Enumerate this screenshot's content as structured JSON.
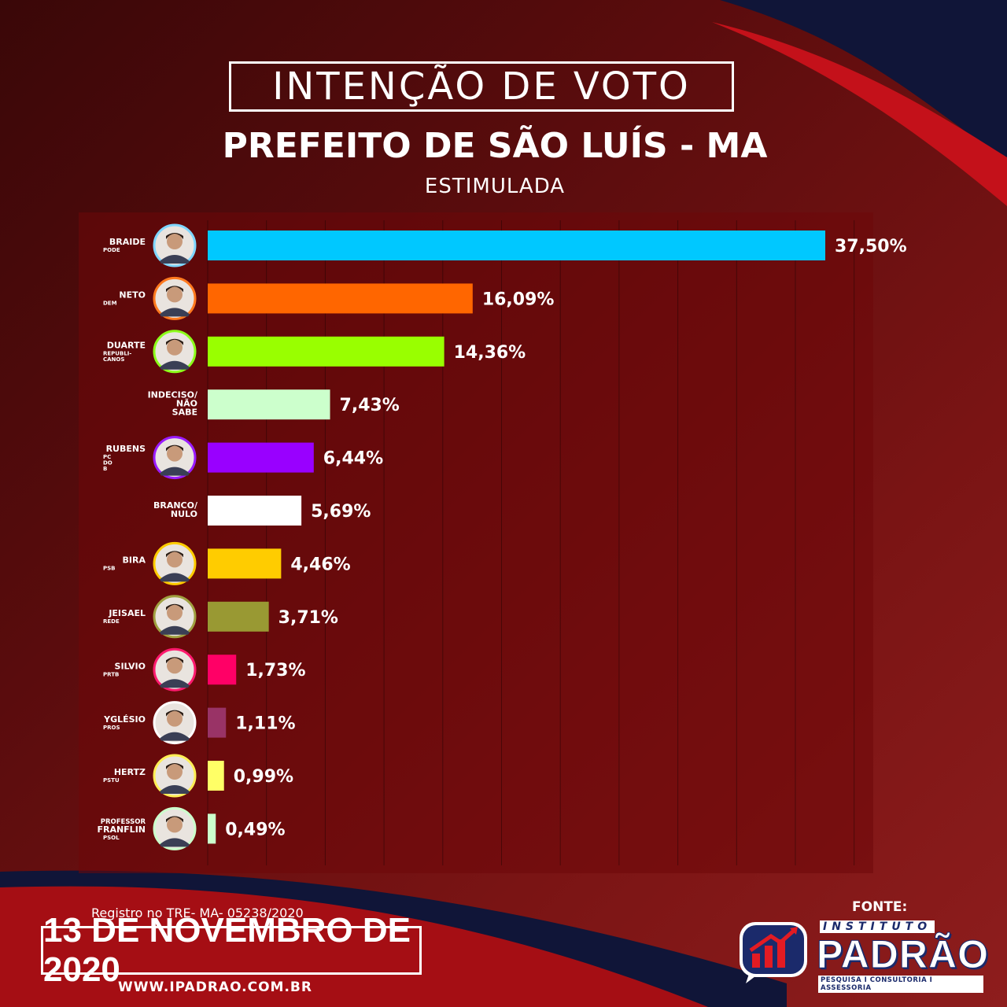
{
  "header": {
    "title": "INTENÇÃO DE VOTO",
    "subtitle": "PREFEITO DE SÃO LUÍS - MA",
    "kind": "ESTIMULADA"
  },
  "footer": {
    "registro": "Registro no TRE- MA- 05238/2020",
    "date": "13 DE NOVEMBRO DE 2020",
    "site": "WWW.IPADRAO.COM.BR",
    "fonte": "FONTE:",
    "logo_instituto": "INSTITUTO",
    "logo_name": "PADRÃO",
    "logo_tagline": "PESQUISA I CONSULTORIA I ASSESSORIA"
  },
  "colors": {
    "bg_dark": "#3a0708",
    "bg_red": "#8e1d1d",
    "navy": "#101538",
    "bright_red": "#c4111a"
  },
  "chart_data": {
    "type": "bar",
    "orientation": "horizontal",
    "grid": true,
    "xlim": [
      0,
      40
    ],
    "items": [
      {
        "name": "BRAIDE",
        "party": "PODE",
        "value": 37.5,
        "label": "37,50%",
        "color": "#00c8ff",
        "photo": true,
        "ring": "#7fd6ff"
      },
      {
        "name": "NETO",
        "party": "DEM",
        "value": 16.09,
        "label": "16,09%",
        "color": "#ff6600",
        "photo": true,
        "ring": "#ff7a1f"
      },
      {
        "name": "DUARTE",
        "party": "REPUBLI- CANOS",
        "value": 14.36,
        "label": "14,36%",
        "color": "#99ff00",
        "photo": true,
        "ring": "#8cff1a"
      },
      {
        "name": "INDECISO/ NÃO SABE",
        "party": "",
        "value": 7.43,
        "label": "7,43%",
        "color": "#ccffcc",
        "photo": false,
        "ring": ""
      },
      {
        "name": "RUBENS",
        "party": "PC DO B",
        "value": 6.44,
        "label": "6,44%",
        "color": "#9900ff",
        "photo": true,
        "ring": "#9a1cff"
      },
      {
        "name": "BRANCO/ NULO",
        "party": "",
        "value": 5.69,
        "label": "5,69%",
        "color": "#ffffff",
        "photo": false,
        "ring": ""
      },
      {
        "name": "BIRA",
        "party": "PSB",
        "value": 4.46,
        "label": "4,46%",
        "color": "#ffcc00",
        "photo": true,
        "ring": "#ffcc00"
      },
      {
        "name": "JEISAEL",
        "party": "REDE",
        "value": 3.71,
        "label": "3,71%",
        "color": "#999933",
        "photo": true,
        "ring": "#a0a040"
      },
      {
        "name": "SILVIO",
        "party": "PRTB",
        "value": 1.73,
        "label": "1,73%",
        "color": "#ff0066",
        "photo": true,
        "ring": "#ff1a6e"
      },
      {
        "name": "YGLÉSIO",
        "party": "PROS",
        "value": 1.11,
        "label": "1,11%",
        "color": "#993366",
        "photo": true,
        "ring": "#ffffff"
      },
      {
        "name": "HERTZ",
        "party": "PSTU",
        "value": 0.99,
        "label": "0,99%",
        "color": "#ffff66",
        "photo": true,
        "ring": "#ffee55"
      },
      {
        "name": "PROFESSOR FRANFLIN",
        "party": "PSOL",
        "value": 0.49,
        "label": "0,49%",
        "color": "#ccffcc",
        "photo": true,
        "ring": "#ccffcc"
      }
    ]
  }
}
